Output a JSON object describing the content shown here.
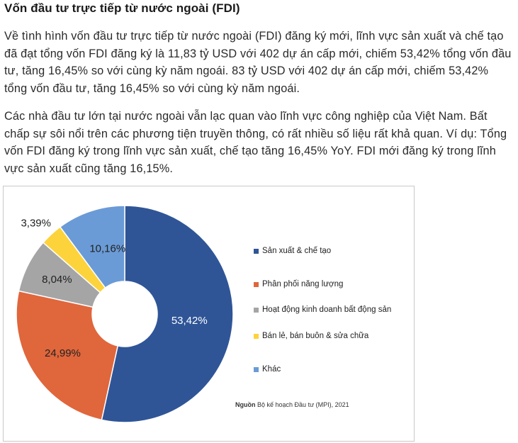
{
  "article": {
    "heading": "Vốn đầu tư trực tiếp từ nước ngoài (FDI)",
    "paragraph1": "Về tình hình vốn đầu tư trực tiếp từ nước ngoài (FDI) đăng ký mới, lĩnh vực sản xuất và chế tạo đã đạt tổng vốn FDI đăng ký là 11,83 tỷ USD với 402 dự án cấp mới, chiếm 53,42% tổng vốn đầu tư, tăng 16,45% so với cùng kỳ năm ngoái. 83 tỷ USD với 402 dự án cấp mới, chiếm 53,42% tổng vốn đầu tư, tăng 16,45% so với cùng kỳ năm ngoái.",
    "paragraph2": "Các nhà đầu tư lớn tại nước ngoài vẫn lạc quan vào lĩnh vực công nghiệp của Việt Nam. Bất chấp sự sôi nổi trên các phương tiện truyền thông, có rất nhiều số liệu rất khả quan. Ví dụ: Tổng vốn FDI đăng ký trong lĩnh vực sản xuất, chế tạo tăng 16,45% YoY. FDI mới đăng ký trong lĩnh vực sản xuất cũng tăng 16,15%."
  },
  "chart_data": {
    "type": "pie",
    "variant": "donut",
    "categories": [
      "Sản xuất & chế tạo",
      "Phân phối năng lượng",
      "Hoạt động kinh doanh bất động sản",
      "Bán lẻ, bán buôn & sửa chữa",
      "Khác"
    ],
    "values": [
      53.42,
      24.99,
      8.04,
      3.39,
      10.16
    ],
    "data_labels": [
      "53,42%",
      "24,99%",
      "8,04%",
      "3,39%",
      "10,16%"
    ],
    "colors": [
      "#2f5597",
      "#e0663c",
      "#a5a5a5",
      "#fdd33b",
      "#6a9bd6"
    ],
    "legend_position": "right",
    "source_label": "Nguồn",
    "source_text": "Bộ kế hoạch Đầu tư (MPI), 2021"
  }
}
